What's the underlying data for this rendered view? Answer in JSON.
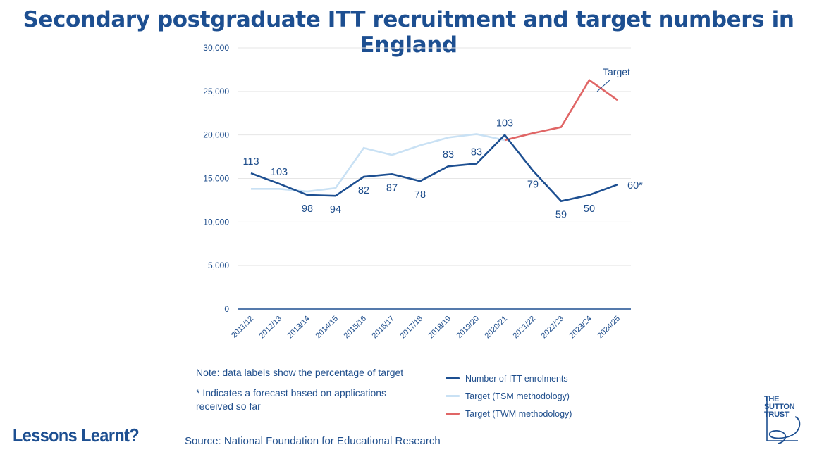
{
  "header": {
    "title": "Secondary postgraduate ITT recruitment and target numbers in England"
  },
  "chart_data": {
    "type": "line",
    "title": "Secondary postgraduate ITT recruitment and target numbers in England",
    "categories": [
      "2011/12",
      "2012/13",
      "2013/14",
      "2014/15",
      "2015/16",
      "2016/17",
      "2017/18",
      "2018/19",
      "2019/20",
      "2020/21",
      "2021/22",
      "2022/23",
      "2023/24",
      "2024/25"
    ],
    "ylim": [
      0,
      30000
    ],
    "yticks": [
      0,
      5000,
      10000,
      15000,
      20000,
      25000,
      30000
    ],
    "ytick_labels": [
      "0",
      "5,000",
      "10,000",
      "15,000",
      "20,000",
      "25,000",
      "30,000"
    ],
    "grid": true,
    "series": [
      {
        "name": "Number of ITT enrolments",
        "color": "#1d4f91",
        "values": [
          15600,
          14400,
          13100,
          13000,
          15200,
          15500,
          14700,
          16400,
          16700,
          20000,
          15900,
          12400,
          13100,
          14300
        ],
        "labels": [
          "113",
          "103",
          "98",
          "94",
          "82",
          "87",
          "78",
          "83",
          "83",
          "103",
          "79",
          "59",
          "50",
          "60*"
        ]
      },
      {
        "name": "Target (TSM methodology)",
        "color": "#c9e1f4",
        "values": [
          13800,
          13800,
          13500,
          13900,
          18500,
          17700,
          18800,
          19700,
          20100,
          19400,
          null,
          null,
          null,
          null
        ]
      },
      {
        "name": "Target (TWM methodology)",
        "color": "#e06666",
        "values": [
          null,
          null,
          null,
          null,
          null,
          null,
          null,
          null,
          null,
          19400,
          20200,
          20900,
          26300,
          24000
        ]
      }
    ],
    "annotation": "Target"
  },
  "notes": {
    "note1": "Note: data labels show the percentage of target",
    "note2": "* Indicates a forecast based on applications received so far"
  },
  "legend": {
    "items": [
      {
        "label": "Number of ITT enrolments",
        "color": "#1d4f91"
      },
      {
        "label": "Target (TSM methodology)",
        "color": "#c9e1f4"
      },
      {
        "label": "Target (TWM methodology)",
        "color": "#e06666"
      }
    ]
  },
  "footer": {
    "brand": "Lessons Learnt?",
    "source": "Source: National Foundation for Educational Research"
  },
  "logo": {
    "text": "THE SUTTON TRUST"
  }
}
